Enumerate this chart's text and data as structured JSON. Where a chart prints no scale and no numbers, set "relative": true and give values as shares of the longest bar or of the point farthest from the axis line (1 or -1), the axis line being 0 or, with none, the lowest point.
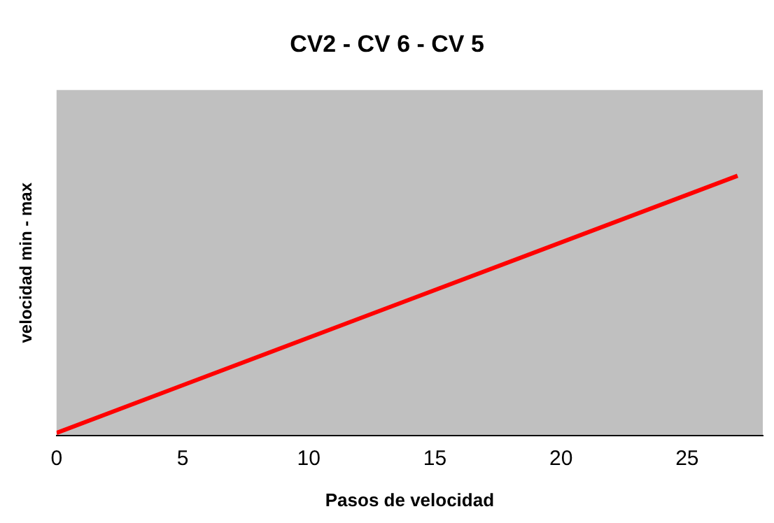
{
  "chart_data": {
    "type": "line",
    "title": "CV2 - CV 6 - CV 5",
    "xlabel": "Pasos de velocidad",
    "ylabel": "velocidad min - max",
    "relative": true,
    "x": [
      0,
      27
    ],
    "series": [
      {
        "color": "#ff0000",
        "values": [
          0.01,
          1
        ]
      }
    ],
    "xlim": [
      0,
      28
    ],
    "xticks": [
      0,
      5,
      10,
      15,
      20,
      25
    ],
    "grid": false,
    "legend": false,
    "marker": "none",
    "line_style": "solid"
  }
}
